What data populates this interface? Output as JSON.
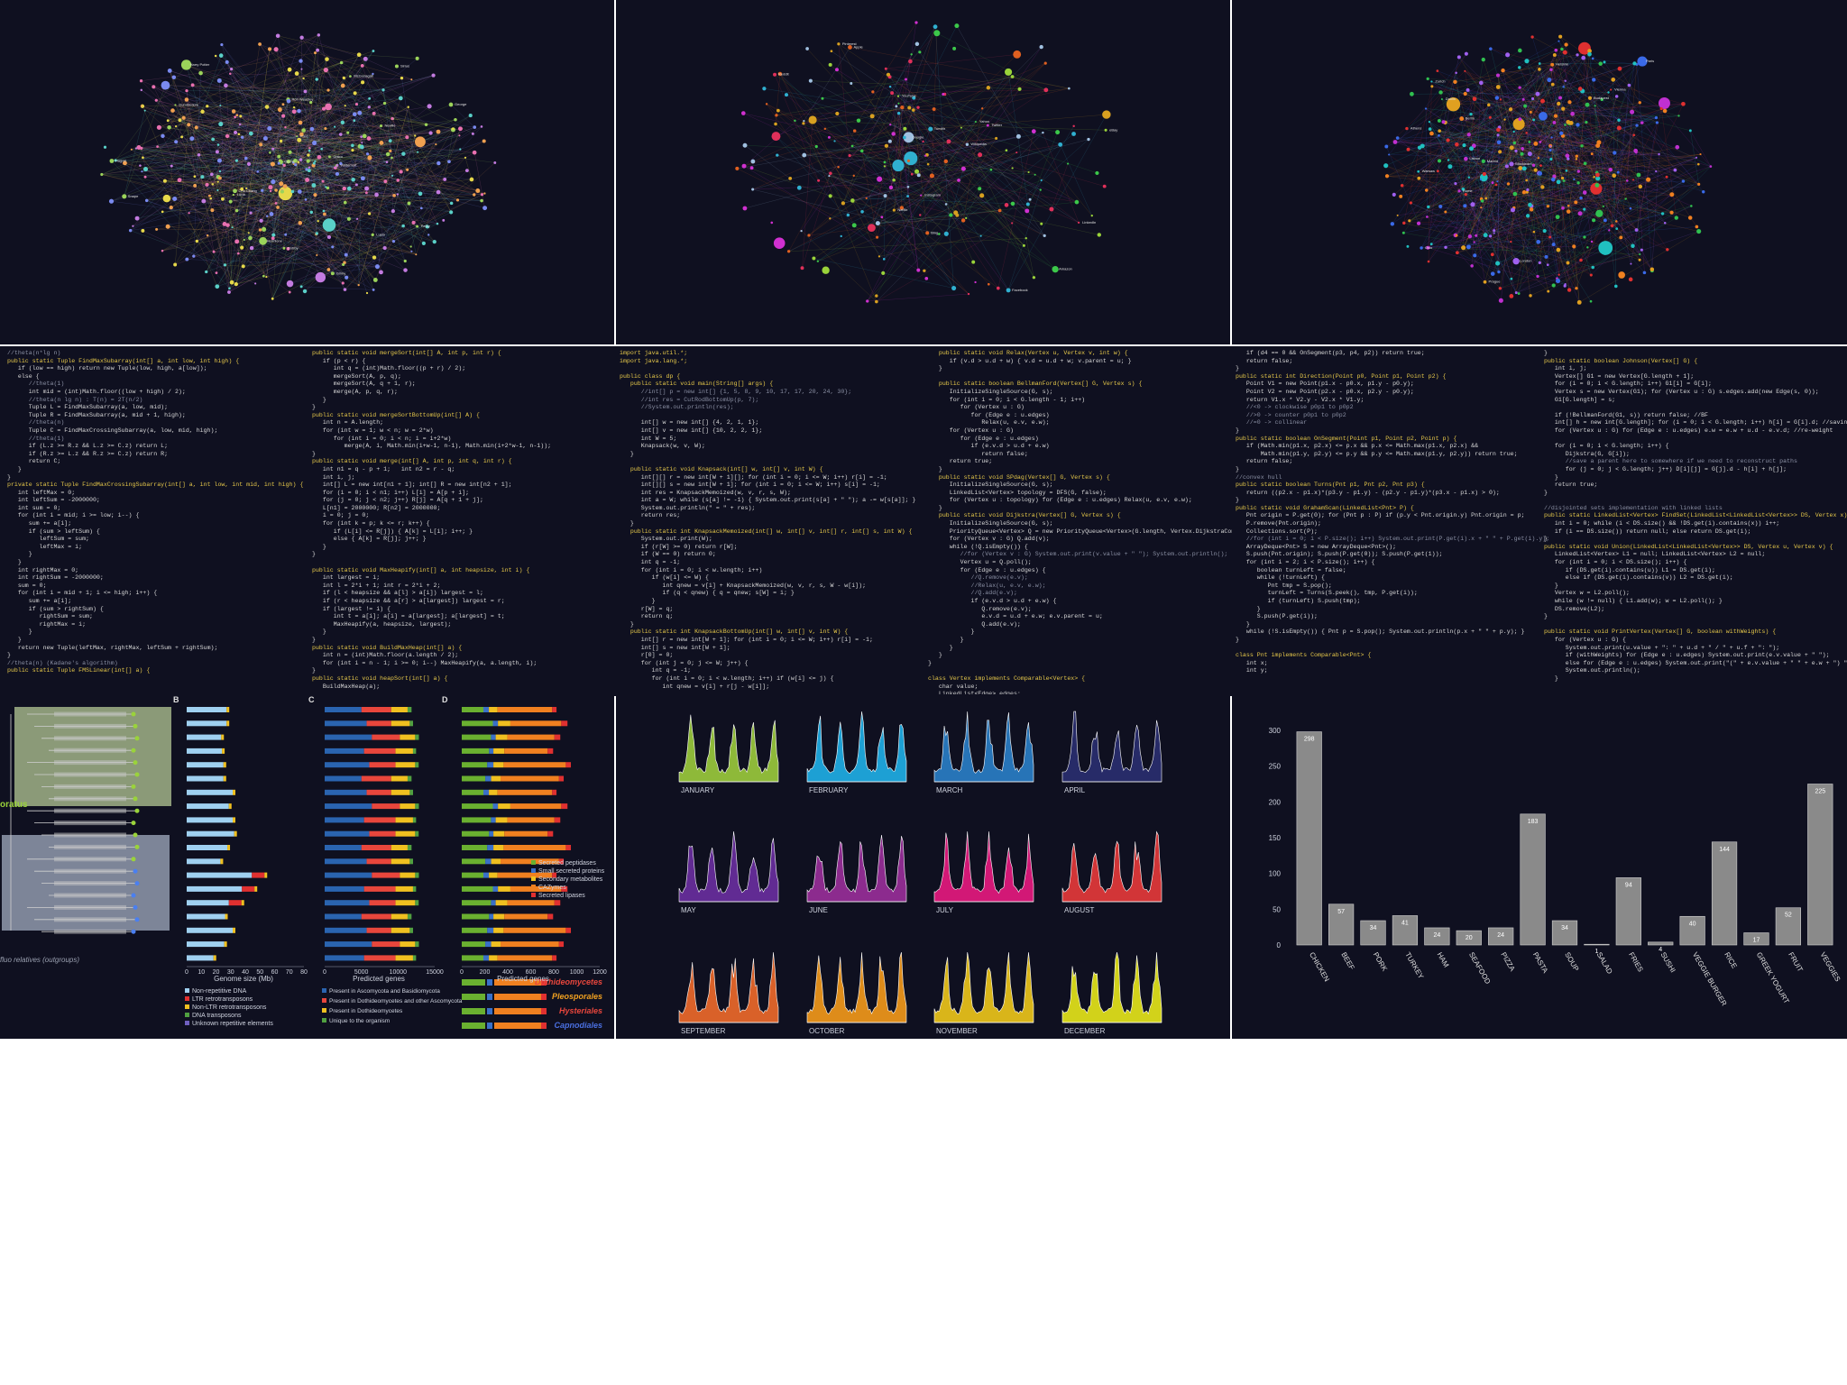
{
  "code_panels": {
    "p1": {
      "col_a": [
        "//theta(n*lg n)",
        "public static Tuple FindMaxSubarray(int[] a, int low, int high) {",
        "   if (low == high) return new Tuple(low, high, a[low]);",
        "   else {",
        "      //theta(1)",
        "      int mid = (int)Math.floor((low + high) / 2);",
        "      //theta(n lg n) : T(n) = 2T(n/2)",
        "      Tuple L = FindMaxSubarray(a, low, mid);",
        "      Tuple R = FindMaxSubarray(a, mid + 1, high);",
        "      //theta(n)",
        "      Tuple C = FindMaxCrossingSubarray(a, low, mid, high);",
        "      //theta(1)",
        "      if (L.z >= R.z && L.z >= C.z) return L;",
        "      if (R.z >= L.z && R.z >= C.z) return R;",
        "      return C;",
        "   }",
        "}",
        "private static Tuple FindMaxCrossingSubarray(int[] a, int low, int mid, int high) {",
        "   int leftMax = 0;",
        "   int leftSum = -2000000;",
        "   int sum = 0;",
        "   for (int i = mid; i >= low; i--) {",
        "      sum += a[i];",
        "      if (sum > leftSum) {",
        "         leftSum = sum;",
        "         leftMax = i;",
        "      }",
        "   }",
        "   int rightMax = 0;",
        "   int rightSum = -2000000;",
        "   sum = 0;",
        "   for (int i = mid + 1; i <= high; i++) {",
        "      sum += a[i];",
        "      if (sum > rightSum) {",
        "         rightSum = sum;",
        "         rightMax = i;",
        "      }",
        "   }",
        "   return new Tuple(leftMax, rightMax, leftSum + rightSum);",
        "}",
        "//theta(n) (Kadane's algorithm)",
        "public static Tuple FMSLinear(int[] a) {"
      ],
      "col_b": [
        "public static void mergeSort(int[] A, int p, int r) {",
        "   if (p < r) {",
        "      int q = (int)Math.floor((p + r) / 2);",
        "      mergeSort(A, p, q);",
        "      mergeSort(A, q + 1, r);",
        "      merge(A, p, q, r);",
        "   }",
        "}",
        "public static void mergeSortBottomUp(int[] A) {",
        "   int n = A.length;",
        "   for (int w = 1; w < n; w = 2*w)",
        "      for (int i = 0; i < n; i = i+2*w)",
        "         merge(A, i, Math.min(i+w-1, n-1), Math.min(i+2*w-1, n-1));",
        "}",
        "public static void merge(int[] A, int p, int q, int r) {",
        "   int n1 = q - p + 1;   int n2 = r - q;",
        "   int i, j;",
        "   int[] L = new int[n1 + 1]; int[] R = new int[n2 + 1];",
        "   for (i = 0; i < n1; i++) L[i] = A[p + i];",
        "   for (j = 0; j < n2; j++) R[j] = A[q + 1 + j];",
        "   L[n1] = 2000000; R[n2] = 2000000;",
        "   i = 0; j = 0;",
        "   for (int k = p; k <= r; k++) {",
        "      if (L[i] <= R[j]) { A[k] = L[i]; i++; }",
        "      else { A[k] = R[j]; j++; }",
        "   }",
        "}",
        "",
        "public static void MaxHeapify(int[] a, int heapsize, int i) {",
        "   int largest = i;",
        "   int l = 2*i + 1; int r = 2*i + 2;",
        "   if (l < heapsize && a[l] > a[i]) largest = l;",
        "   if (r < heapsize && a[r] > a[largest]) largest = r;",
        "   if (largest != i) {",
        "      int t = a[i]; a[i] = a[largest]; a[largest] = t;",
        "      MaxHeapify(a, heapsize, largest);",
        "   }",
        "}",
        "public static void BuildMaxHeap(int[] a) {",
        "   int n = (int)Math.floor(a.length / 2);",
        "   for (int i = n - 1; i >= 0; i--) MaxHeapify(a, a.length, i);",
        "}",
        "public static void heapSort(int[] a) {",
        "   BuildMaxHeap(a);"
      ]
    },
    "p2": {
      "col_a": [
        "import java.util.*;",
        "import java.lang.*;",
        "",
        "public class dp {",
        "   public static void main(String[] args) {",
        "      //int[] p = new int[] {1, 5, 8, 9, 10, 17, 17, 20, 24, 30};",
        "      //int res = CutRodBottomUp(p, 7);",
        "      //System.out.println(res);",
        "",
        "      int[] w = new int[] {4, 2, 1, 1};",
        "      int[] v = new int[] {10, 2, 2, 1};",
        "      int W = 5;",
        "      Knapsack(w, v, W);",
        "   }",
        "",
        "   public static void Knapsack(int[] w, int[] v, int W) {",
        "      int[][] r = new int[W + 1][]; for (int i = 0; i <= W; i++) r[i] = -1;",
        "      int[][] s = new int[W + 1]; for (int i = 0; i <= W; i++) s[i] = -1;",
        "      int res = KnapsackMemoized(w, v, r, s, W);",
        "      int a = W; while (s[a] != -1) { System.out.print(s[a] + \" \"); a -= w[s[a]]; }",
        "      System.out.println(\" = \" + res);",
        "      return res;",
        "   }",
        "   public static int KnapsackMemoized(int[] w, int[] v, int[] r, int[] s, int W) {",
        "      System.out.print(W);",
        "      if (r[W] >= 0) return r[W];",
        "      if (W == 0) return 0;",
        "      int q = -1;",
        "      for (int i = 0; i < w.length; i++)",
        "         if (w[i] <= W) {",
        "            int qnew = v[i] + KnapsackMemoized(w, v, r, s, W - w[i]);",
        "            if (q < qnew) { q = qnew; s[W] = i; }",
        "         }",
        "      r[W] = q;",
        "      return q;",
        "   }",
        "   public static int KnapsackBottomUp(int[] w, int[] v, int W) {",
        "      int[] r = new int[W + 1]; for (int i = 0; i <= W; i++) r[i] = -1;",
        "      int[] s = new int[W + 1];",
        "      r[0] = 0;",
        "      for (int j = 0; j <= W; j++) {",
        "         int q = -1;",
        "         for (int i = 0; i < w.length; i++) if (w[i] <= j) {",
        "            int qnew = v[i] + r[j - w[i]];"
      ],
      "col_b": [
        "   public static void Relax(Vertex u, Vertex v, int w) {",
        "      if (v.d > u.d + w) { v.d = u.d + w; v.parent = u; }",
        "   }",
        "",
        "   public static boolean BellmanFord(Vertex[] G, Vertex s) {",
        "      InitializeSingleSource(G, s);",
        "      for (int i = 0; i < G.length - 1; i++)",
        "         for (Vertex u : G)",
        "            for (Edge e : u.edges)",
        "               Relax(u, e.v, e.w);",
        "      for (Vertex u : G)",
        "         for (Edge e : u.edges)",
        "            if (e.v.d > u.d + e.w)",
        "               return false;",
        "      return true;",
        "   }",
        "   public static void SPdag(Vertex[] G, Vertex s) {",
        "      InitializeSingleSource(G, s);",
        "      LinkedList<Vertex> topology = DFS(G, false);",
        "      for (Vertex u : topology) for (Edge e : u.edges) Relax(u, e.v, e.w);",
        "   }",
        "   public static void Dijkstra(Vertex[] G, Vertex s) {",
        "      InitializeSingleSource(G, s);",
        "      PriorityQueue<Vertex> Q = new PriorityQueue<Vertex>(G.length, Vertex.DijkstraComparator);",
        "      for (Vertex v : G) Q.add(v);",
        "      while (!Q.isEmpty()) {",
        "         //for (Vertex v : G) System.out.print(v.value + \" \"); System.out.println();",
        "         Vertex u = Q.poll();",
        "         for (Edge e : u.edges) {",
        "            //Q.remove(e.v);",
        "            //Relax(u, e.v, e.w);",
        "            //Q.add(e.v);",
        "            if (e.v.d > u.d + e.w) {",
        "               Q.remove(e.v);",
        "               e.v.d = u.d + e.w; e.v.parent = u;",
        "               Q.add(e.v);",
        "            }",
        "         }",
        "      }",
        "   }",
        "}",
        "",
        "class Vertex implements Comparable<Vertex> {",
        "   char value;",
        "   LinkedList<Edge> edges;"
      ]
    },
    "p3": {
      "col_a": [
        "   if (d4 == 0 && OnSegment(p3, p4, p2)) return true;",
        "   return false;",
        "}",
        "public static int Direction(Point p0, Point p1, Point p2) {",
        "   Point V1 = new Point(p1.x - p0.x, p1.y - p0.y);",
        "   Point V2 = new Point(p2.x - p0.x, p2.y - p0.y);",
        "   return V1.x * V2.y - V2.x * V1.y;",
        "   //<0 -> clockwise p0p1 to p0p2",
        "   //>0 -> counter p0p1 to p0p2",
        "   //=0 -> collinear",
        "}",
        "public static boolean OnSegment(Point p1, Point p2, Point p) {",
        "   if (Math.min(p1.x, p2.x) <= p.x && p.x <= Math.max(p1.x, p2.x) &&",
        "       Math.min(p1.y, p2.y) <= p.y && p.y <= Math.max(p1.y, p2.y)) return true;",
        "   return false;",
        "}",
        "//convex hull",
        "public static boolean Turns(Pnt p1, Pnt p2, Pnt p3) {",
        "   return ((p2.x - p1.x)*(p3.y - p1.y) - (p2.y - p1.y)*(p3.x - p1.x) > 0);",
        "}",
        "public static void GrahamScan(LinkedList<Pnt> P) {",
        "   Pnt origin = P.get(0); for (Pnt p : P) if (p.y < Pnt.origin.y) Pnt.origin = p;",
        "   P.remove(Pnt.origin);",
        "   Collections.sort(P);",
        "   //for (int i = 0; i < P.size(); i++) System.out.print(P.get(i).x + \" \" + P.get(i).y);",
        "   ArrayDeque<Pnt> S = new ArrayDeque<Pnt>();",
        "   S.push(Pnt.origin); S.push(P.get(0)); S.push(P.get(1));",
        "   for (int i = 2; i < P.size(); i++) {",
        "      boolean turnLeft = false;",
        "      while (!turnLeft) {",
        "         Pnt tmp = S.pop();",
        "         turnLeft = Turns(S.peek(), tmp, P.get(i));",
        "         if (turnLeft) S.push(tmp);",
        "      }",
        "      S.push(P.get(i));",
        "   }",
        "   while (!S.isEmpty()) { Pnt p = S.pop(); System.out.println(p.x + \" \" + p.y); }",
        "}",
        "",
        "class Pnt implements Comparable<Pnt> {",
        "   int x;",
        "   int y;"
      ],
      "col_b": [
        "}",
        "public static boolean Johnson(Vertex[] G) {",
        "   int i, j;",
        "   Vertex[] G1 = new Vertex[G.length + 1];",
        "   for (i = 0; i < G.length; i++) G1[i] = G[i];",
        "   Vertex s = new Vertex(G1); for (Vertex u : G) s.edges.add(new Edge(s, 0));",
        "   G1[G.length] = s;",
        "",
        "   if (!BellmanFord(G1, s)) return false; //BF",
        "   int[] h = new int[G.length]; for (i = 0; i < G.length; i++) h[i] = G[i].d; //saving",
        "   for (Vertex u : G) for (Edge e : u.edges) e.w = e.w + u.d - e.v.d; //re-weight",
        "",
        "   for (i = 0; i < G.length; i++) {",
        "      Dijkstra(G, G[i]);",
        "      //save a parent here to somewhere if we need to reconstruct paths",
        "      for (j = 0; j < G.length; j++) D[i][j] = G[j].d - h[i] + h[j];",
        "   }",
        "   return true;",
        "}",
        "",
        "//disjointed sets implementation with linked lists",
        "public static LinkedList<Vertex> FindSet(LinkedList<LinkedList<Vertex>> DS, Vertex x) {",
        "   int i = 0; while (i < DS.size() && !DS.get(i).contains(x)) i++;",
        "   if (i == DS.size()) return null; else return DS.get(i);",
        "}",
        "public static void Union(LinkedList<LinkedList<Vertex>> DS, Vertex u, Vertex v) {",
        "   LinkedList<Vertex> L1 = null; LinkedList<Vertex> L2 = null;",
        "   for (int i = 0; i < DS.size(); i++) {",
        "      if (DS.get(i).contains(u)) L1 = DS.get(i);",
        "      else if (DS.get(i).contains(v)) L2 = DS.get(i);",
        "   }",
        "   Vertex w = L2.poll();",
        "   while (w != null) { L1.add(w); w = L2.poll(); }",
        "   DS.remove(L2);",
        "}",
        "",
        "public static void PrintVertex(Vertex[] G, boolean withWeights) {",
        "   for (Vertex u : G) {",
        "      System.out.print(u.value + \": \" + u.d + \" / \" + u.f + \": \");",
        "      if (withWeights) for (Edge e : u.edges) System.out.print(e.v.value + \" \");",
        "      else for (Edge e : u.edges) System.out.print(\"(\" + e.v.value + \" \" + e.w + \") \");",
        "      System.out.println();",
        "   }"
      ]
    }
  },
  "networks": {
    "n1": {
      "labels": [
        "Harry Potter",
        "Hermione",
        "Ron Weasley",
        "Dumbledore",
        "Hagrid",
        "Snape",
        "Voldemort",
        "Draco",
        "Sirius",
        "Lupin",
        "Neville",
        "Ginny",
        "Luna",
        "Fred",
        "George",
        "Percy",
        "McGonagall",
        "Dobby",
        "Cedric",
        "Cho Chang"
      ]
    },
    "n2": {
      "labels": [
        "Amazon",
        "Google",
        "Apple",
        "Facebook",
        "Twitter",
        "Reddit",
        "Netflix",
        "eBay",
        "Yahoo",
        "Wikipedia",
        "Bing",
        "Tumblr",
        "Instagram",
        "LinkedIn",
        "Pinterest",
        "YouTube"
      ]
    },
    "n3": {
      "labels": [
        "Paris",
        "London",
        "Berlin",
        "Madrid",
        "Rome",
        "Vienna",
        "Prague",
        "Warsaw",
        "Oslo",
        "Stockholm",
        "Helsinki",
        "Dublin",
        "Lisbon",
        "Athens",
        "Budapest",
        "Zurich"
      ]
    }
  },
  "genome": {
    "panel_letters": [
      "B",
      "C",
      "D"
    ],
    "group_label": "oratus",
    "subtitle": "fluo relatives (outgroups)",
    "chart_b": {
      "xlabel": "Genome size (Mb)",
      "ticks": [
        "0",
        "10",
        "20",
        "30",
        "40",
        "50",
        "60",
        "70",
        "80"
      ],
      "legend": [
        "Non-repetitive DNA",
        "LTR retrotransposons",
        "Non-LTR retrotransposons",
        "DNA transposons",
        "Unknown repetitive elements"
      ]
    },
    "chart_c": {
      "xlabel": "Predicted genes",
      "ticks": [
        "0",
        "5000",
        "10000",
        "15000"
      ],
      "legend": [
        "Present in Ascomycota and Basidiomycota",
        "Present in Dothideomycetes and other Ascomycota",
        "Present in Dothideomycetes",
        "Unique to the organism"
      ]
    },
    "chart_d": {
      "xlabel": "Predicted genes",
      "ticks": [
        "0",
        "200",
        "400",
        "600",
        "800",
        "1000",
        "1200"
      ],
      "legend": [
        "Secreted peptidases",
        "Small secreted proteins",
        "Secondary metabolites",
        "CAZymes",
        "Secreted lipases"
      ],
      "classes": [
        "Dothideomycetes",
        "Pleosporales",
        "Hysteriales",
        "Capnodiales"
      ],
      "class_colors": [
        "#e8463c",
        "#f0a020",
        "#e8463c",
        "#4a6fe0"
      ]
    }
  },
  "months": {
    "names": [
      "JANUARY",
      "FEBRUARY",
      "MARCH",
      "APRIL",
      "MAY",
      "JUNE",
      "JULY",
      "AUGUST",
      "SEPTEMBER",
      "OCTOBER",
      "NOVEMBER",
      "DECEMBER"
    ],
    "colors": [
      "#9ccc3c",
      "#1fb0e8",
      "#2a7fc8",
      "#2a2f70",
      "#6a2fa0",
      "#9a2f9a",
      "#e8197f",
      "#e83a3a",
      "#f06a2a",
      "#f59a1a",
      "#f0c81a",
      "#e8e81a"
    ]
  },
  "chart_data": {
    "type": "bar",
    "categories": [
      "CHICKEN",
      "BEEF",
      "PORK",
      "TURKEY",
      "HAM",
      "SEAFOOD",
      "PIZZA",
      "PASTA",
      "SOUP",
      "SALAD",
      "FRIES",
      "SUSHI",
      "VEGGIE BURGER",
      "RICE",
      "GREEK YOGURT",
      "FRUIT",
      "VEGGIES"
    ],
    "values": [
      298,
      57,
      34,
      41,
      24,
      20,
      24,
      183,
      34,
      1,
      94,
      4,
      40,
      144,
      17,
      52,
      225
    ],
    "ylim": [
      0,
      300
    ],
    "yticks": [
      "0",
      "50",
      "100",
      "150",
      "200",
      "250",
      "300"
    ],
    "bar_color": "#8a8a8a"
  }
}
